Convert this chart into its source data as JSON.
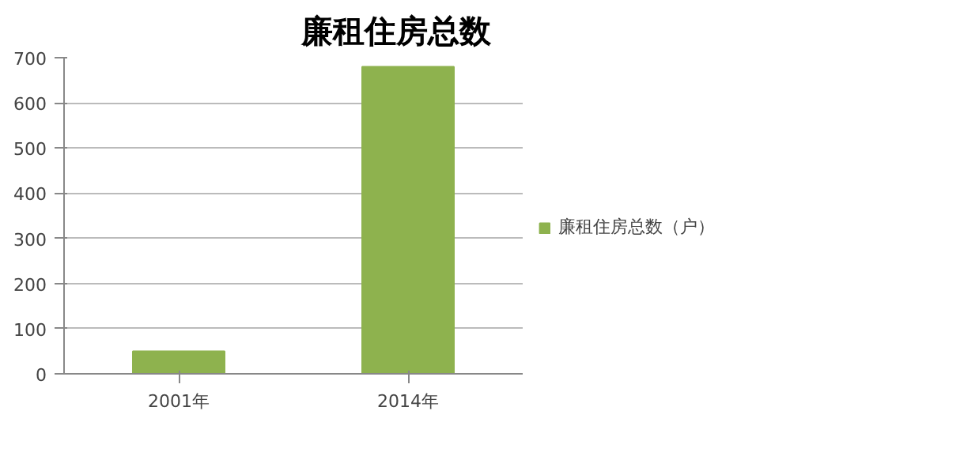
{
  "chart_data": {
    "type": "bar",
    "title": "廉租住房总数",
    "categories": [
      "2001年",
      "2014年"
    ],
    "series": [
      {
        "name": "廉租住房总数（户）",
        "color": "#8eb24e",
        "values": [
          50,
          680
        ]
      }
    ],
    "ylim": [
      0,
      700
    ],
    "yticks": [
      0,
      100,
      200,
      300,
      400,
      500,
      600,
      700
    ],
    "grid": "y",
    "legend": "right"
  }
}
